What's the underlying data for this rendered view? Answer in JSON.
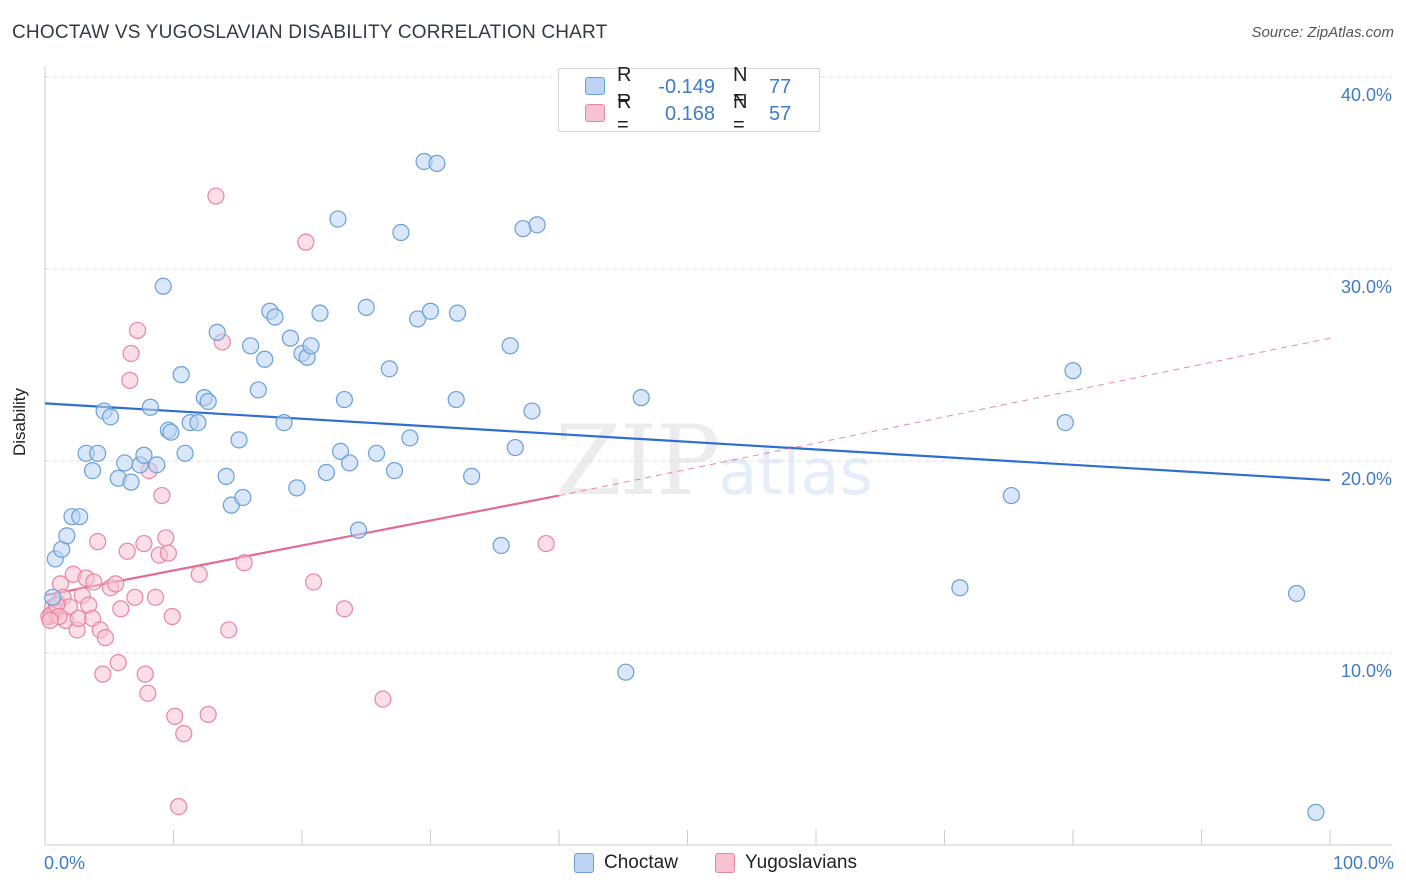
{
  "title": "CHOCTAW VS YUGOSLAVIAN DISABILITY CORRELATION CHART",
  "source": "Source: ZipAtlas.com",
  "watermark": {
    "zip": "ZIP",
    "atlas": "atlas"
  },
  "colors": {
    "choctaw_fill": "#bcd4f2",
    "choctaw_stroke": "#6a9fd8",
    "choctaw_line": "#2e6fcd",
    "yugo_fill": "#f7c3d3",
    "yugo_stroke": "#e8869f",
    "yugo_line": "#e36b93",
    "axis_text": "#3d7cc9",
    "grid": "#d9dde3"
  },
  "legend": {
    "rows": [
      {
        "r_label": "R =",
        "r_value": "-0.149",
        "n_label": "N =",
        "n_value": "77"
      },
      {
        "r_label": "R =",
        "r_value": "0.168",
        "n_label": "N =",
        "n_value": "57"
      }
    ]
  },
  "bottom_legend": {
    "choctaw": "Choctaw",
    "yugoslavians": "Yugoslavians"
  },
  "chart_data": {
    "type": "scatter",
    "title": "CHOCTAW VS YUGOSLAVIAN DISABILITY CORRELATION CHART",
    "xlabel": "",
    "ylabel": "Disability",
    "xlim": [
      0,
      100
    ],
    "ylim": [
      0,
      42
    ],
    "x_tick_labels": [
      "0.0%",
      "100.0%"
    ],
    "y_ticks": [
      10,
      20,
      30,
      40
    ],
    "y_tick_labels": [
      "10.0%",
      "20.0%",
      "30.0%",
      "40.0%"
    ],
    "grid": true,
    "series": [
      {
        "name": "Choctaw",
        "trend": {
          "x0": 0,
          "y0": 23.0,
          "x1": 100,
          "y1": 19.0,
          "style": "solid"
        },
        "points": [
          [
            0.6,
            12.9
          ],
          [
            0.8,
            14.9
          ],
          [
            1.3,
            15.4
          ],
          [
            1.7,
            16.1
          ],
          [
            2.1,
            17.1
          ],
          [
            2.7,
            17.1
          ],
          [
            3.2,
            20.4
          ],
          [
            3.7,
            19.5
          ],
          [
            4.1,
            20.4
          ],
          [
            4.6,
            22.6
          ],
          [
            5.1,
            22.3
          ],
          [
            5.7,
            19.1
          ],
          [
            6.2,
            19.9
          ],
          [
            6.7,
            18.9
          ],
          [
            7.4,
            19.8
          ],
          [
            7.7,
            20.3
          ],
          [
            8.2,
            22.8
          ],
          [
            8.7,
            19.8
          ],
          [
            9.2,
            29.1
          ],
          [
            9.6,
            21.6
          ],
          [
            9.8,
            21.5
          ],
          [
            10.6,
            24.5
          ],
          [
            10.9,
            20.4
          ],
          [
            11.3,
            22.0
          ],
          [
            11.9,
            22.0
          ],
          [
            12.4,
            23.3
          ],
          [
            12.7,
            23.1
          ],
          [
            13.4,
            26.7
          ],
          [
            14.1,
            19.2
          ],
          [
            14.5,
            17.7
          ],
          [
            15.1,
            21.1
          ],
          [
            15.4,
            18.1
          ],
          [
            16.0,
            26.0
          ],
          [
            16.6,
            23.7
          ],
          [
            17.1,
            25.3
          ],
          [
            17.5,
            27.8
          ],
          [
            17.9,
            27.5
          ],
          [
            18.6,
            22.0
          ],
          [
            19.1,
            26.4
          ],
          [
            19.6,
            18.6
          ],
          [
            20.0,
            25.6
          ],
          [
            20.4,
            25.4
          ],
          [
            20.7,
            26.0
          ],
          [
            21.4,
            27.7
          ],
          [
            21.9,
            19.4
          ],
          [
            22.8,
            32.6
          ],
          [
            23.0,
            20.5
          ],
          [
            23.3,
            23.2
          ],
          [
            23.7,
            19.9
          ],
          [
            24.4,
            16.4
          ],
          [
            25.0,
            28.0
          ],
          [
            25.8,
            20.4
          ],
          [
            26.8,
            24.8
          ],
          [
            27.2,
            19.5
          ],
          [
            27.7,
            31.9
          ],
          [
            28.4,
            21.2
          ],
          [
            29.0,
            27.4
          ],
          [
            29.5,
            35.6
          ],
          [
            30.0,
            27.8
          ],
          [
            30.5,
            35.5
          ],
          [
            32.0,
            23.2
          ],
          [
            32.1,
            27.7
          ],
          [
            33.2,
            19.2
          ],
          [
            35.5,
            15.6
          ],
          [
            36.2,
            26.0
          ],
          [
            36.6,
            20.7
          ],
          [
            37.2,
            32.1
          ],
          [
            37.9,
            22.6
          ],
          [
            38.3,
            32.3
          ],
          [
            45.2,
            9.0
          ],
          [
            46.4,
            23.3
          ],
          [
            71.2,
            13.4
          ],
          [
            75.2,
            18.2
          ],
          [
            79.4,
            22.0
          ],
          [
            80.0,
            24.7
          ],
          [
            97.4,
            13.1
          ],
          [
            98.9,
            1.7
          ]
        ]
      },
      {
        "name": "Yugoslavians",
        "trend": {
          "x0": 0,
          "y0": 13.0,
          "x1": 40,
          "y1": 18.2,
          "x2": 100,
          "y2": 26.4,
          "style": "solid-then-dashed"
        },
        "points": [
          [
            0.3,
            11.9
          ],
          [
            0.6,
            12.4
          ],
          [
            0.8,
            12.1
          ],
          [
            1.0,
            12.6
          ],
          [
            1.2,
            13.6
          ],
          [
            1.4,
            12.9
          ],
          [
            1.6,
            11.7
          ],
          [
            1.9,
            12.4
          ],
          [
            2.2,
            14.1
          ],
          [
            2.5,
            11.2
          ],
          [
            2.6,
            11.8
          ],
          [
            2.9,
            13.0
          ],
          [
            3.2,
            13.9
          ],
          [
            3.4,
            12.5
          ],
          [
            3.7,
            11.8
          ],
          [
            3.8,
            13.7
          ],
          [
            4.1,
            15.8
          ],
          [
            4.3,
            11.2
          ],
          [
            4.5,
            8.9
          ],
          [
            4.7,
            10.8
          ],
          [
            5.1,
            13.4
          ],
          [
            5.5,
            13.6
          ],
          [
            5.7,
            9.5
          ],
          [
            5.9,
            12.3
          ],
          [
            6.4,
            15.3
          ],
          [
            6.6,
            24.2
          ],
          [
            6.7,
            25.6
          ],
          [
            7.0,
            12.9
          ],
          [
            7.2,
            26.8
          ],
          [
            7.7,
            15.7
          ],
          [
            7.8,
            8.9
          ],
          [
            8.0,
            7.9
          ],
          [
            8.1,
            19.5
          ],
          [
            8.6,
            12.9
          ],
          [
            8.9,
            15.1
          ],
          [
            9.1,
            18.2
          ],
          [
            9.4,
            16.0
          ],
          [
            9.6,
            15.2
          ],
          [
            9.9,
            11.9
          ],
          [
            10.1,
            6.7
          ],
          [
            10.4,
            2.0
          ],
          [
            10.8,
            5.8
          ],
          [
            12.0,
            14.1
          ],
          [
            12.7,
            6.8
          ],
          [
            13.3,
            33.8
          ],
          [
            13.8,
            26.2
          ],
          [
            14.3,
            11.2
          ],
          [
            15.5,
            14.7
          ],
          [
            20.3,
            31.4
          ],
          [
            20.9,
            13.7
          ],
          [
            23.3,
            12.3
          ],
          [
            26.3,
            7.6
          ],
          [
            39.0,
            15.7
          ],
          [
            0.5,
            12.0
          ],
          [
            0.9,
            12.5
          ],
          [
            1.1,
            11.9
          ],
          [
            0.4,
            11.7
          ]
        ]
      }
    ]
  }
}
